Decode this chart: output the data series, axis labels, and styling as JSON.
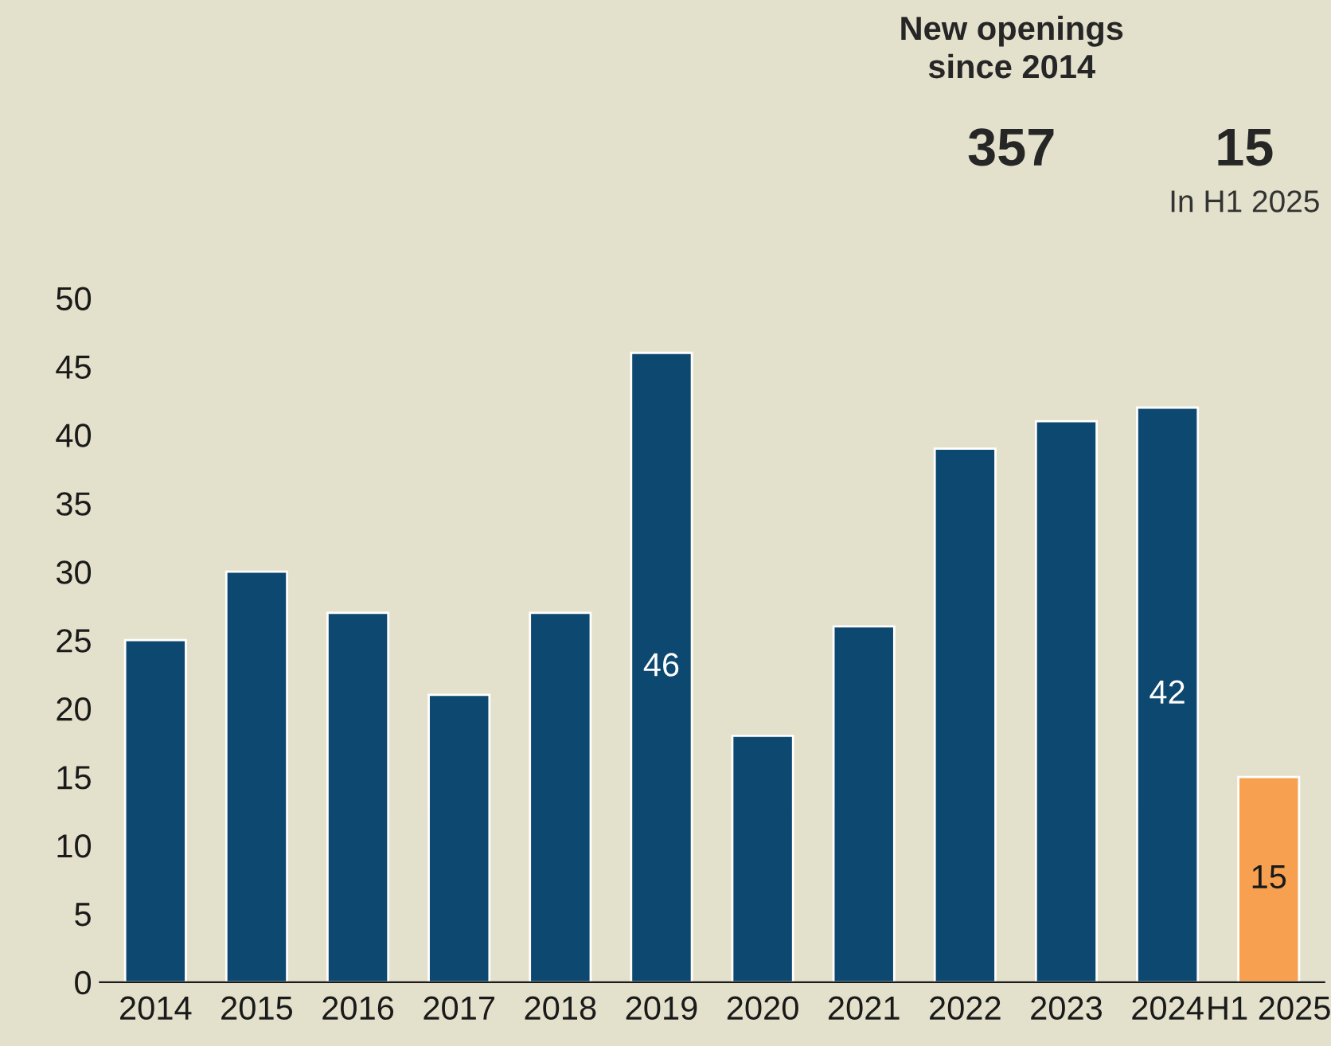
{
  "chart_data": {
    "type": "bar",
    "categories": [
      "2014",
      "2015",
      "2016",
      "2017",
      "2018",
      "2019",
      "2020",
      "2021",
      "2022",
      "2023",
      "2024",
      "H1 2025"
    ],
    "values": [
      25,
      30,
      27,
      21,
      27,
      46,
      18,
      26,
      39,
      41,
      42,
      15
    ],
    "colors": [
      "#0d4870",
      "#0d4870",
      "#0d4870",
      "#0d4870",
      "#0d4870",
      "#0d4870",
      "#0d4870",
      "#0d4870",
      "#0d4870",
      "#0d4870",
      "#0d4870",
      "#f7a04f"
    ],
    "value_labels": [
      null,
      null,
      null,
      null,
      null,
      "46",
      null,
      null,
      null,
      null,
      "42",
      "15"
    ],
    "ylim": [
      0,
      50
    ],
    "yticks": [
      0,
      5,
      10,
      15,
      20,
      25,
      30,
      35,
      40,
      45,
      50
    ],
    "annotations": [
      "New openings\nsince 2014",
      "357",
      "15",
      "In H1 2025"
    ],
    "grid": false,
    "legend": false
  }
}
